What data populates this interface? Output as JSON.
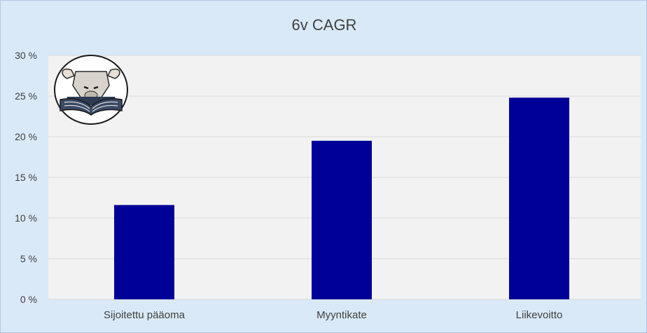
{
  "chart_data": {
    "type": "bar",
    "title": "6v CAGR",
    "categories": [
      "Sijoitettu pääoma",
      "Myyntikate",
      "Liikevoitto"
    ],
    "values": [
      11.6,
      19.5,
      24.8
    ],
    "ylim": [
      0,
      30
    ],
    "yticks": [
      0,
      5,
      10,
      15,
      20,
      25,
      30
    ],
    "ytick_labels": [
      "0 %",
      "5 %",
      "10 %",
      "15 %",
      "20 %",
      "25 %",
      "30 %"
    ],
    "xlabel": "",
    "ylabel": "",
    "grid": true,
    "legend": "none",
    "colors": {
      "bar": "#000099",
      "frame_bg": "#dae9f8",
      "plot_bg": "#f2f2f2",
      "grid": "#d9d9d9",
      "text": "#404040"
    }
  },
  "logo": {
    "icon": "bull-reading-book-logo"
  }
}
